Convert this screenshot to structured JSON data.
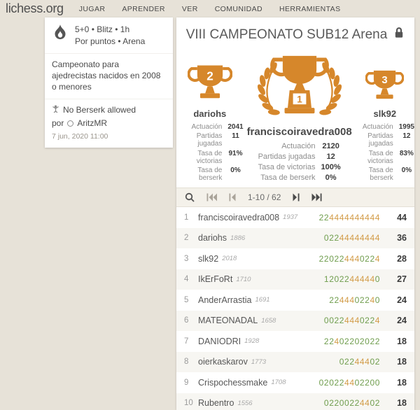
{
  "header": {
    "logo": "lichess.org",
    "menu": [
      "JUGAR",
      "APRENDER",
      "VER",
      "COMUNIDAD",
      "HERRAMIENTAS"
    ]
  },
  "tournament_card": {
    "time_line": "5+0 • Blitz • 1h",
    "format_line": "Por puntos • Arena",
    "description": "Campeonato para ajedrecistas nacidos en 2008 o menores",
    "berserk_note": "No Berserk allowed",
    "by_label": "por",
    "organizer": "AritzMR",
    "date": "7 jun, 2020 11:00"
  },
  "main": {
    "title": "VIII CAMPEONATO SUB12 Arena",
    "podium": [
      {
        "rank": "1",
        "name": "franciscoiravedra008",
        "stats": [
          {
            "label": "Actuación",
            "value": "2120"
          },
          {
            "label": "Partidas jugadas",
            "value": "12"
          },
          {
            "label": "Tasa de victorias",
            "value": "100%"
          },
          {
            "label": "Tasa de berserk",
            "value": "0%"
          }
        ]
      },
      {
        "rank": "2",
        "name": "dariohs",
        "stats": [
          {
            "label": "Actuación",
            "value": "2041"
          },
          {
            "label": "Partidas jugadas",
            "value": "11"
          },
          {
            "label": "Tasa de victorias",
            "value": "91%"
          },
          {
            "label": "Tasa de berserk",
            "value": "0%"
          }
        ]
      },
      {
        "rank": "3",
        "name": "slk92",
        "stats": [
          {
            "label": "Actuación",
            "value": "1995"
          },
          {
            "label": "Partidas jugadas",
            "value": "12"
          },
          {
            "label": "Tasa de victorias",
            "value": "83%"
          },
          {
            "label": "Tasa de berserk",
            "value": "0%"
          }
        ]
      }
    ],
    "pagination": {
      "range": "1-10 / 62"
    },
    "standings": [
      {
        "rank": "1",
        "name": "franciscoiravedra008",
        "rating": "1937",
        "sheet": "224444444444",
        "total": "44"
      },
      {
        "rank": "2",
        "name": "dariohs",
        "rating": "1886",
        "sheet": "02244444444",
        "total": "36"
      },
      {
        "rank": "3",
        "name": "slk92",
        "rating": "2018",
        "sheet": "220224440224",
        "total": "28"
      },
      {
        "rank": "4",
        "name": "IkErFoRt",
        "rating": "1710",
        "sheet": "12022444440",
        "total": "27"
      },
      {
        "rank": "5",
        "name": "AnderArrastia",
        "rating": "1691",
        "sheet": "2244402240",
        "total": "24"
      },
      {
        "rank": "6",
        "name": "MATEONADAL",
        "rating": "1658",
        "sheet": "00224440224",
        "total": "24"
      },
      {
        "rank": "7",
        "name": "DANIODRI",
        "rating": "1928",
        "sheet": "22402202022",
        "total": "18"
      },
      {
        "rank": "8",
        "name": "oierkaskarov",
        "rating": "1773",
        "sheet": "02244402",
        "total": "18"
      },
      {
        "rank": "9",
        "name": "Crispochessmake",
        "rating": "1708",
        "sheet": "020224402200",
        "total": "18"
      },
      {
        "rank": "10",
        "name": "Rubentro",
        "rating": "1556",
        "sheet": "02200224402",
        "total": "18"
      }
    ]
  },
  "icons": {
    "blitz": "flame",
    "berserk": "berserk-figure",
    "organizer_status": "circle-outline",
    "title_lock": "padlock",
    "search": "magnifier",
    "pagination": [
      "first-page",
      "prev-page",
      "next-page",
      "last-page"
    ],
    "trophies": [
      "gold-cup-laurel-1",
      "gold-cup-2",
      "gold-cup-3"
    ]
  },
  "colors": {
    "gold": "#d6872b",
    "sheet_win_double": "#d29b46",
    "sheet_normal": "#6f9d4d",
    "background": "#e7e2d8"
  }
}
